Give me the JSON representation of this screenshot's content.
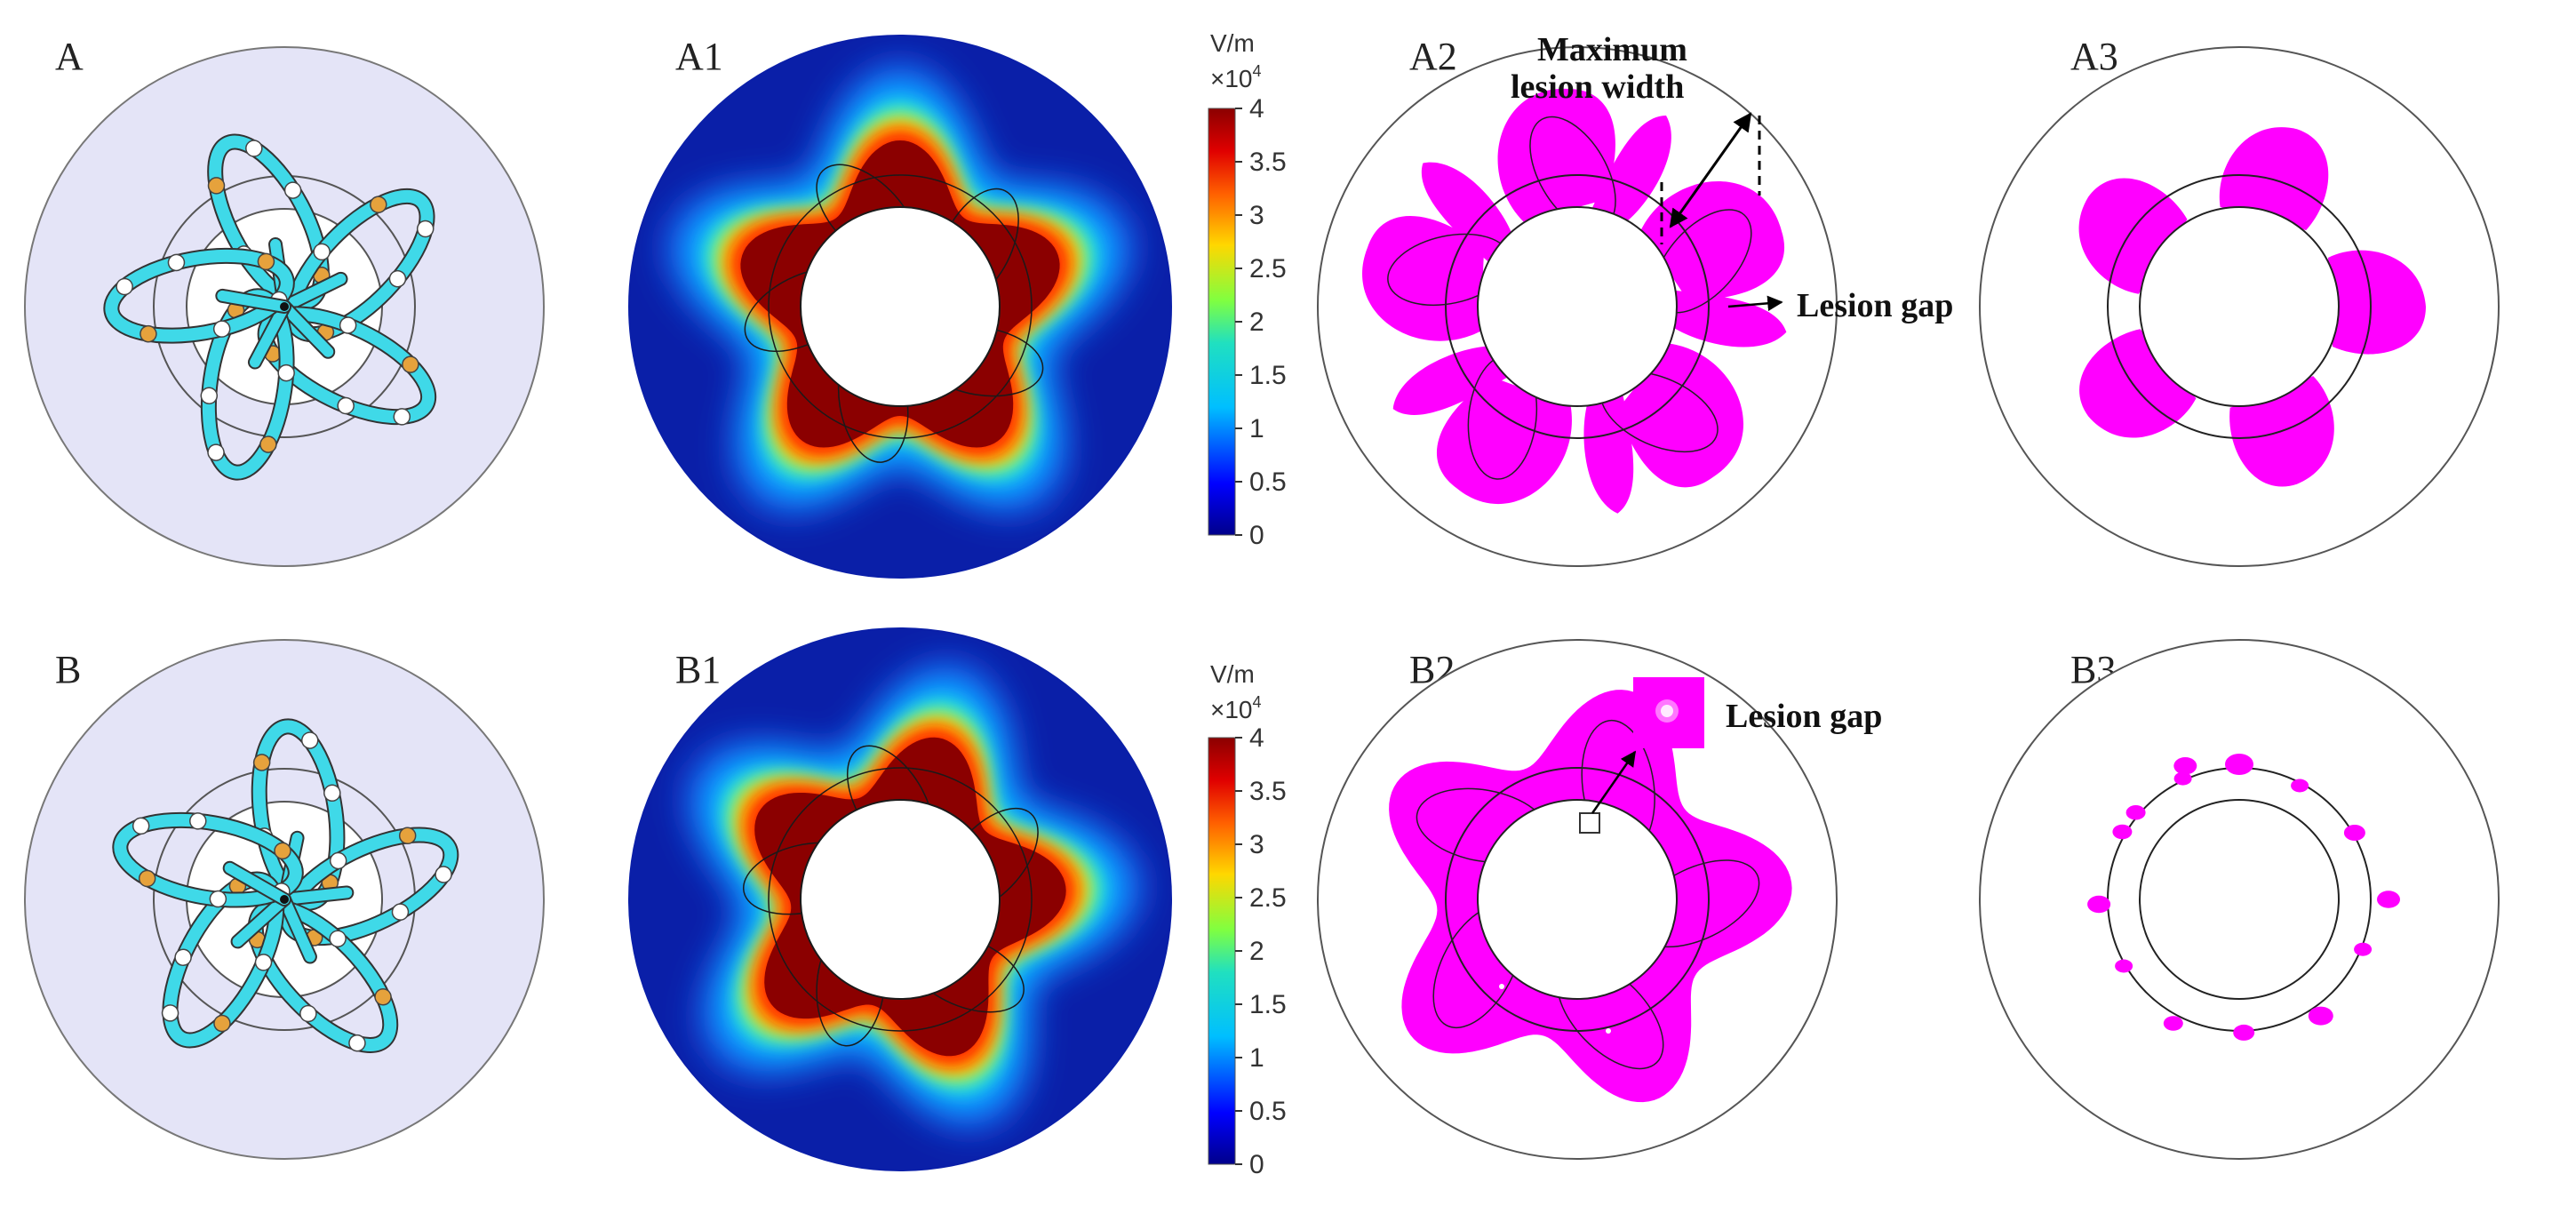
{
  "panels": {
    "A": "A",
    "A1": "A1",
    "A2": "A2",
    "A3": "A3",
    "B": "B",
    "B1": "B1",
    "B2": "B2",
    "B3": "B3"
  },
  "annotations": {
    "max_width_line1": "Maximum",
    "max_width_line2": "lesion width",
    "lesion_gap_a": "Lesion gap",
    "lesion_gap_b": "Lesion gap"
  },
  "colorbar": {
    "unit": "V/m",
    "multiplier": "×10",
    "exponent": "4",
    "ticks": [
      "4",
      "3.5",
      "3",
      "2.5",
      "2",
      "1.5",
      "1",
      "0.5",
      "0"
    ]
  },
  "colors": {
    "lesion": "#ff00ff",
    "field_high": "#8b0000",
    "field_low": "#00008b",
    "electrode_cyan": "#3fd9e8",
    "electrode_orange": "#e6a23c",
    "catheter_bg": "#e4e4f7"
  }
}
